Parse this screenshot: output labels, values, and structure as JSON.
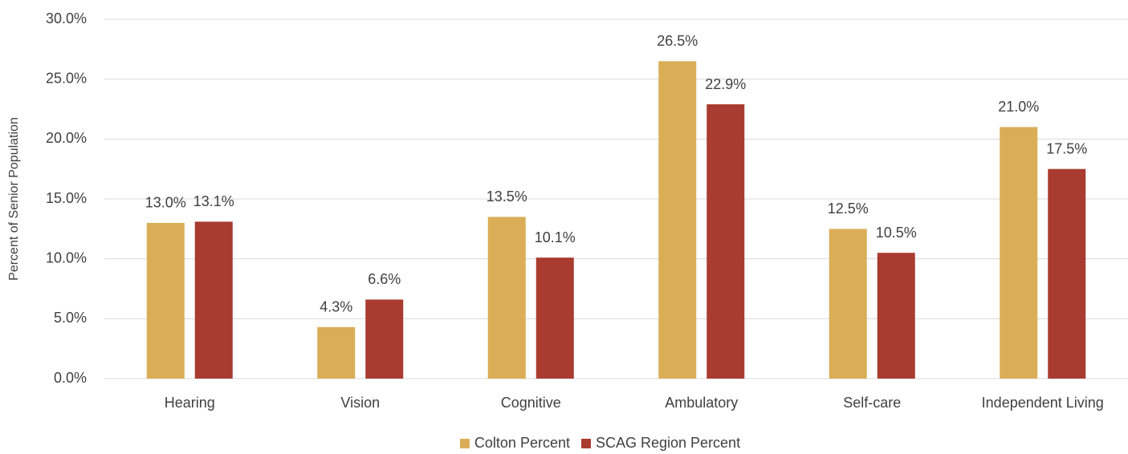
{
  "chart_data": {
    "type": "bar",
    "y_label": "Percent of Senior Population",
    "categories": [
      "Hearing",
      "Vision",
      "Cognitive",
      "Ambulatory",
      "Self-care",
      "Independent Living"
    ],
    "series": [
      {
        "name": "Colton Percent",
        "color": "#d9ae57",
        "values": [
          13.0,
          4.3,
          13.5,
          26.5,
          12.5,
          21.0
        ],
        "value_labels": [
          "13.0%",
          "4.3%",
          "13.5%",
          "26.5%",
          "12.5%",
          "21.0%"
        ]
      },
      {
        "name": "SCAG Region Percent",
        "color": "#a93b30",
        "values": [
          13.1,
          6.6,
          10.1,
          22.9,
          10.5,
          17.5
        ],
        "value_labels": [
          "13.1%",
          "6.6%",
          "10.1%",
          "22.9%",
          "10.5%",
          "17.5%"
        ]
      }
    ],
    "ylim": [
      0,
      30
    ],
    "yticks": [
      {
        "value": 0,
        "label": "0.0%"
      },
      {
        "value": 5,
        "label": "5.0%"
      },
      {
        "value": 10,
        "label": "10.0%"
      },
      {
        "value": 15,
        "label": "15.0%"
      },
      {
        "value": 20,
        "label": "20.0%"
      },
      {
        "value": 25,
        "label": "25.0%"
      },
      {
        "value": 30,
        "label": "30.0%"
      }
    ],
    "grid": true,
    "legend": "bottom"
  }
}
